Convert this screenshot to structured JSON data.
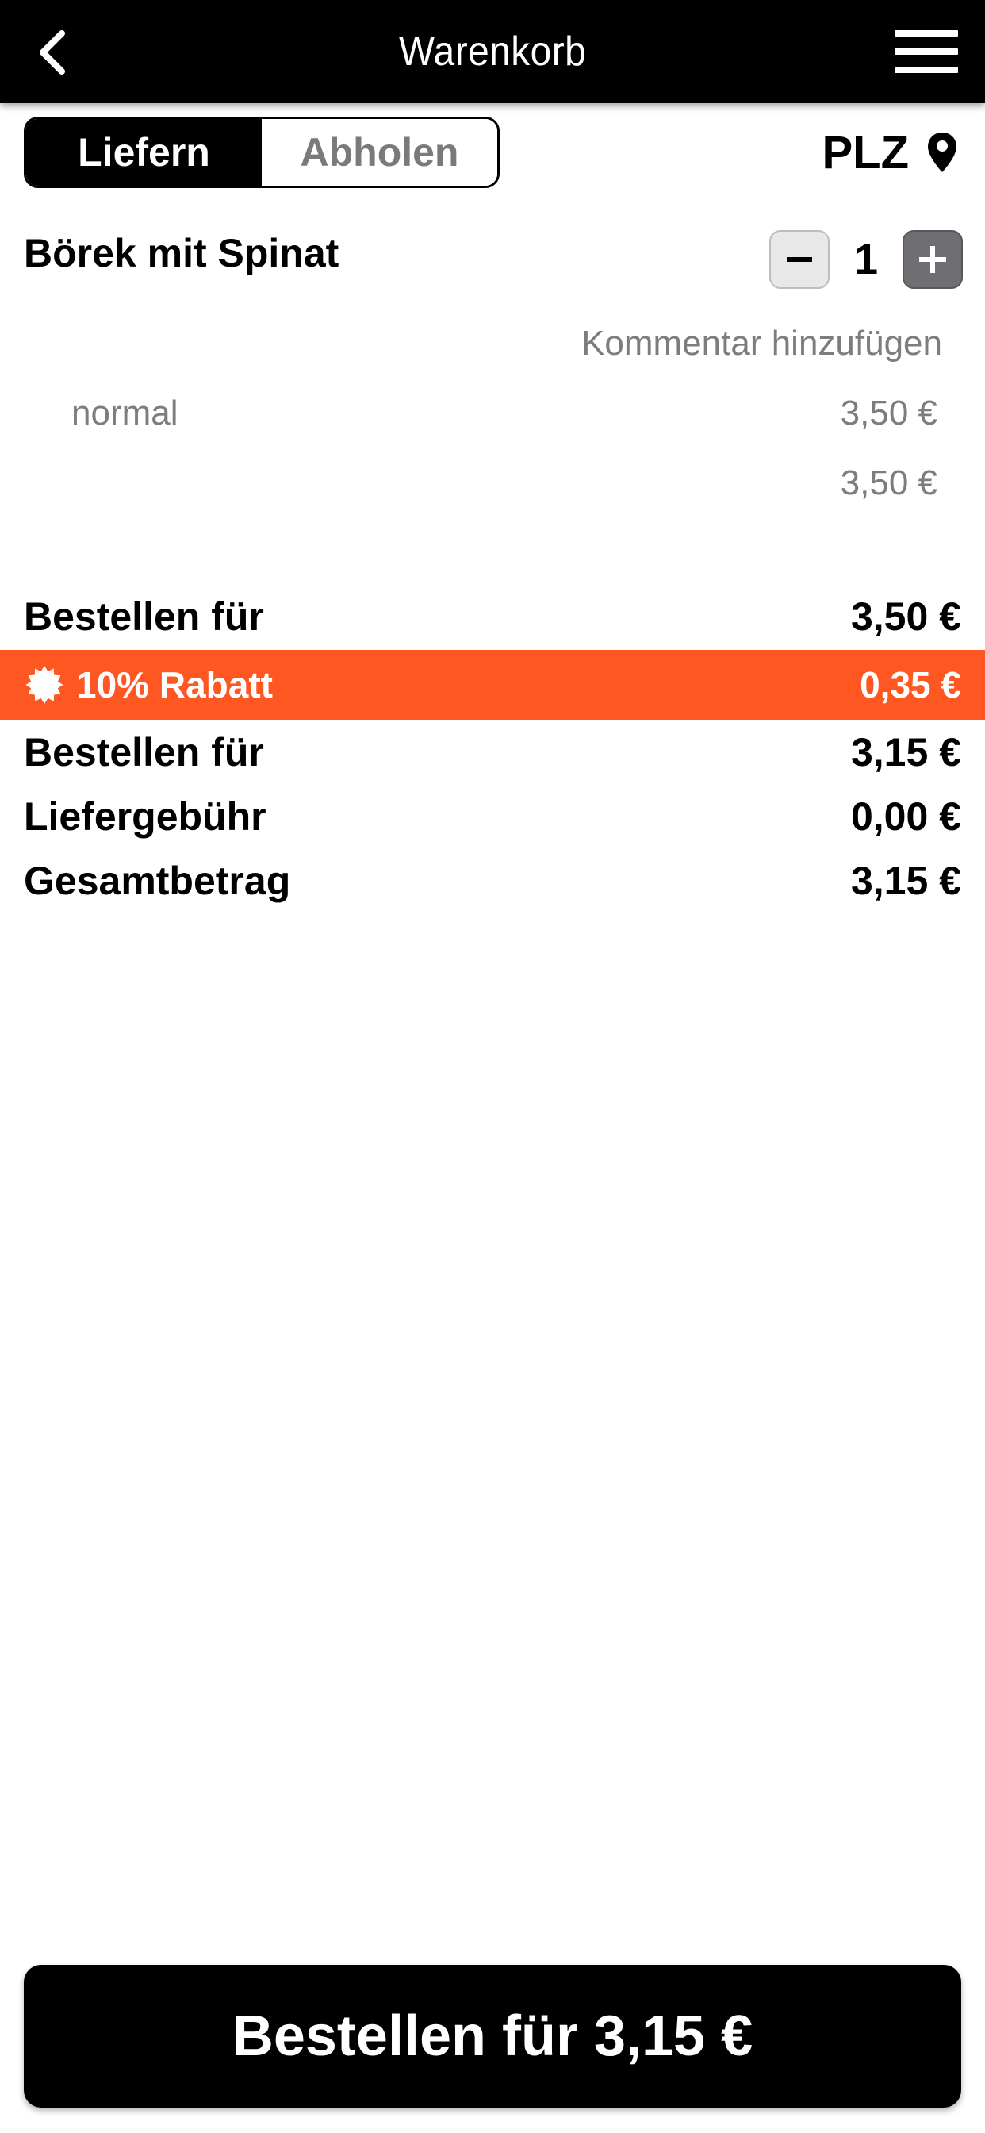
{
  "header": {
    "title": "Warenkorb",
    "back_icon": "chevron-left-icon",
    "menu_icon": "hamburger-menu-icon"
  },
  "delivery_mode": {
    "options": [
      "Liefern",
      "Abholen"
    ],
    "selected": "Liefern"
  },
  "location": {
    "label": "PLZ",
    "icon": "map-pin-icon"
  },
  "cart": {
    "items": [
      {
        "name": "Börek mit Spinat",
        "quantity": "1",
        "comment_link": "Kommentar hinzufügen",
        "option": "normal",
        "option_price": "3,50 €",
        "item_total": "3,50 €"
      }
    ]
  },
  "summary": {
    "subtotal_label": "Bestellen für",
    "subtotal_value": "3,50 €",
    "discount_label": "10% Rabatt",
    "discount_value": "0,35 €",
    "discounted_label": "Bestellen für",
    "discounted_value": "3,15 €",
    "delivery_fee_label": "Liefergebühr",
    "delivery_fee_value": "0,00 €",
    "total_label": "Gesamtbetrag",
    "total_value": "3,15 €"
  },
  "order_button": {
    "label": "Bestellen für 3,15 €"
  },
  "colors": {
    "header_bg": "#000000",
    "accent": "#ff5722",
    "muted_text": "#7d7d7d"
  }
}
